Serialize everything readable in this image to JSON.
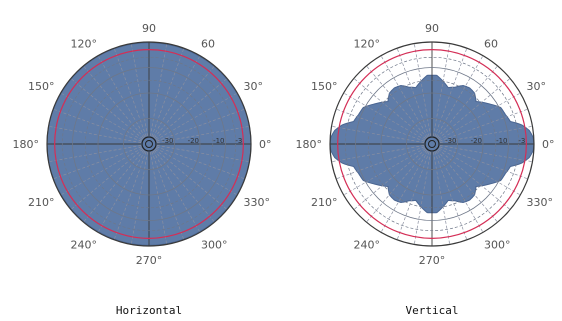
{
  "colors": {
    "fill": "#5f7ca8",
    "fill_edge": "#4a6591",
    "outline": "#3a3a3a",
    "reference_ring": "#d42e56",
    "grid": "#6e7788",
    "spokes": "#8a8fa0"
  },
  "chart_data": [
    {
      "type": "polar-area",
      "title": "Horizontal",
      "angle_labels": [
        {
          "deg": 0,
          "text": "0°"
        },
        {
          "deg": 30,
          "text": "30°"
        },
        {
          "deg": 60,
          "text": "60"
        },
        {
          "deg": 90,
          "text": "90"
        },
        {
          "deg": 120,
          "text": "120°"
        },
        {
          "deg": 150,
          "text": "150°"
        },
        {
          "deg": 180,
          "text": "180°"
        },
        {
          "deg": 210,
          "text": "210°"
        },
        {
          "deg": 240,
          "text": "240°"
        },
        {
          "deg": 270,
          "text": "270°"
        },
        {
          "deg": 300,
          "text": "300°"
        },
        {
          "deg": 330,
          "text": "330°"
        }
      ],
      "ring_labels": [
        "-3",
        "-10",
        "-20",
        "-30"
      ],
      "grid_step_deg": 10,
      "reference_db": -3,
      "range_db": [
        -40,
        0
      ],
      "series": [
        {
          "angles": [
            0,
            30,
            60,
            90,
            120,
            150,
            180,
            210,
            240,
            270,
            300,
            330
          ],
          "values_db": [
            0,
            -0.2,
            -0.3,
            -0.3,
            -0.2,
            -0.2,
            0,
            -0.2,
            -0.3,
            -0.3,
            -0.3,
            -0.2
          ]
        }
      ]
    },
    {
      "type": "polar-area",
      "title": "Vertical",
      "angle_labels": [
        {
          "deg": 0,
          "text": "0°"
        },
        {
          "deg": 30,
          "text": "30°"
        },
        {
          "deg": 60,
          "text": "60"
        },
        {
          "deg": 90,
          "text": "90"
        },
        {
          "deg": 120,
          "text": "120°"
        },
        {
          "deg": 150,
          "text": "150°"
        },
        {
          "deg": 180,
          "text": "180°"
        },
        {
          "deg": 210,
          "text": "210°"
        },
        {
          "deg": 240,
          "text": "240°"
        },
        {
          "deg": 270,
          "text": "270°"
        },
        {
          "deg": 300,
          "text": "300°"
        },
        {
          "deg": 330,
          "text": "330°"
        }
      ],
      "ring_labels": [
        "-3",
        "-10",
        "-20",
        "-30"
      ],
      "grid_step_deg": 10,
      "reference_db": -3,
      "range_db": [
        -40,
        0
      ],
      "series": [
        {
          "angles": [
            0,
            4,
            8,
            12,
            16,
            22,
            28,
            36,
            44,
            50,
            56,
            62,
            68,
            74,
            80,
            86,
            90,
            94,
            100,
            106,
            112,
            118,
            124,
            130,
            136,
            144,
            152,
            158,
            164,
            168,
            172,
            176,
            180,
            184,
            188,
            192,
            196,
            202,
            208,
            216,
            224,
            230,
            236,
            242,
            248,
            254,
            260,
            266,
            270,
            274,
            280,
            286,
            292,
            298,
            304,
            310,
            316,
            324,
            332,
            338,
            344,
            348,
            352,
            356
          ],
          "values_db": [
            0,
            -0.3,
            -1.5,
            -4,
            -8,
            -9,
            -9.5,
            -13,
            -16,
            -14,
            -13.5,
            -14,
            -16,
            -17,
            -15,
            -13,
            -13,
            -13,
            -15,
            -17,
            -16,
            -14,
            -13.5,
            -14,
            -16,
            -13,
            -9.5,
            -9,
            -8,
            -4,
            -1.5,
            -0.3,
            0,
            -0.3,
            -1.5,
            -4,
            -8,
            -9,
            -9.5,
            -13,
            -16,
            -14,
            -13.5,
            -14,
            -16,
            -17,
            -15,
            -13,
            -13,
            -13,
            -15,
            -17,
            -16,
            -14,
            -13.5,
            -14,
            -16,
            -13,
            -9.5,
            -9,
            -8,
            -4,
            -1.5,
            -0.3
          ]
        }
      ]
    }
  ]
}
